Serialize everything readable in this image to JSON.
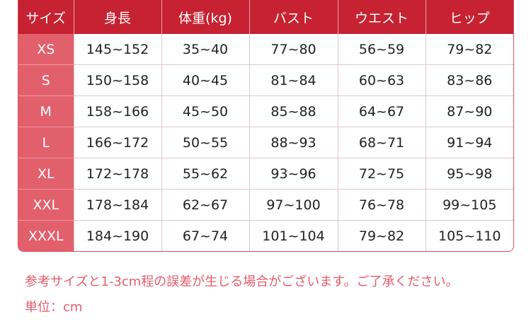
{
  "table": {
    "headers": [
      "サイズ",
      "身長",
      "体重(kg)",
      "バスト",
      "ウエスト",
      "ヒップ"
    ],
    "rows": [
      [
        "XS",
        "145~152",
        "35~40",
        "77~80",
        "56~59",
        "79~82"
      ],
      [
        "S",
        "150~158",
        "40~45",
        "81~84",
        "60~63",
        "83~86"
      ],
      [
        "M",
        "158~166",
        "45~50",
        "85~88",
        "64~67",
        "87~90"
      ],
      [
        "L",
        "166~172",
        "50~55",
        "88~93",
        "68~71",
        "91~94"
      ],
      [
        "XL",
        "172~178",
        "55~62",
        "93~96",
        "72~75",
        "95~98"
      ],
      [
        "XXL",
        "178~184",
        "62~67",
        "97~100",
        "76~78",
        "99~105"
      ],
      [
        "XXXL",
        "184~190",
        "67~74",
        "101~104",
        "79~82",
        "105~110"
      ]
    ]
  },
  "notes": {
    "line1": "参考サイズと1-3cm程の誤差が生じる場合がございます。ご了承ください。",
    "line2": "単位：cm"
  },
  "colors": {
    "header": "#c62232",
    "size_column": "#e2606c",
    "note_text": "#e55d6b"
  }
}
